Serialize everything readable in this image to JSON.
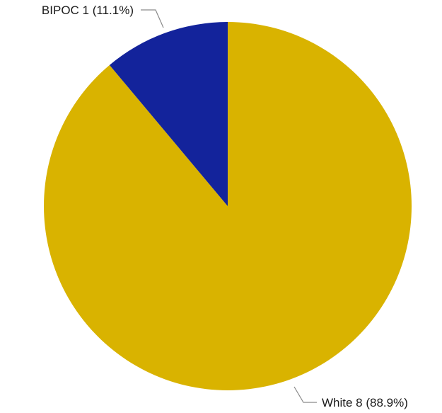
{
  "chart_data": {
    "type": "pie",
    "title": "",
    "legend": "none",
    "start": "top",
    "direction": "clockwise",
    "slices": [
      {
        "label": "White",
        "value": 8,
        "percent": "88.9%",
        "color": "#D9B300"
      },
      {
        "label": "BIPOC",
        "value": 1,
        "percent": "11.1%",
        "color": "#13239B"
      }
    ]
  }
}
